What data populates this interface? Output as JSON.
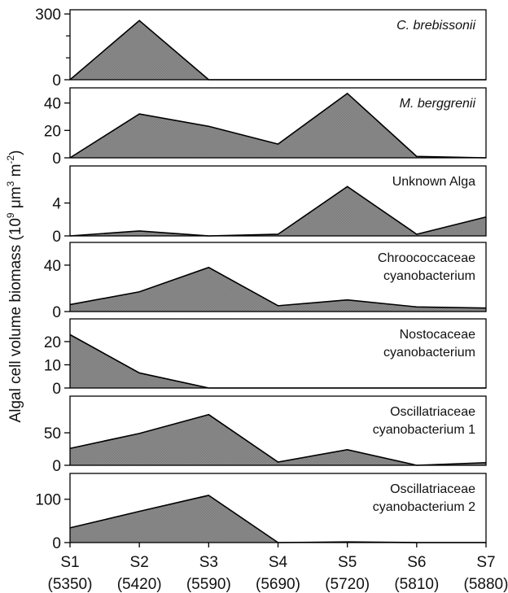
{
  "chart_data": {
    "type": "area",
    "ylabel": "Algal cell volume biomass (10",
    "ylabel_sup1": "9",
    "ylabel_mid": " μm",
    "ylabel_sup2": "3",
    "ylabel_end": " m",
    "ylabel_sup3": "-2",
    "ylabel_close": ")",
    "categories": [
      "S1",
      "S2",
      "S3",
      "S4",
      "S5",
      "S6",
      "S7"
    ],
    "category_sublabels": [
      "(5350)",
      "(5420)",
      "(5590)",
      "(5690)",
      "(5720)",
      "(5810)",
      "(5880)"
    ],
    "fill_color": "#8a8a8a",
    "line_color": "#000000",
    "panels": [
      {
        "title_lines": [
          "C. brebissonii"
        ],
        "italic": true,
        "ylim": [
          0,
          300
        ],
        "yticks": [
          0,
          300
        ],
        "minor_yticks": [
          100,
          200
        ],
        "values": [
          0,
          270,
          0,
          0,
          0,
          0,
          0
        ]
      },
      {
        "title_lines": [
          "M. berggrenii"
        ],
        "italic": true,
        "ylim": [
          0,
          48
        ],
        "yticks": [
          0,
          20,
          40
        ],
        "minor_yticks": [],
        "values": [
          0,
          32,
          23,
          10,
          47,
          1,
          0
        ]
      },
      {
        "title_lines": [
          "Unknown Alga"
        ],
        "italic": false,
        "ylim": [
          0,
          8
        ],
        "yticks": [
          0,
          4
        ],
        "minor_yticks": [],
        "values": [
          0,
          0.6,
          0,
          0.2,
          6.0,
          0.2,
          2.3
        ]
      },
      {
        "title_lines": [
          "Chroococcaceae",
          "cyanobacterium"
        ],
        "italic": false,
        "ylim": [
          0,
          56
        ],
        "yticks": [
          0,
          40
        ],
        "minor_yticks": [],
        "values": [
          6,
          17,
          38,
          5,
          10,
          4,
          3
        ]
      },
      {
        "title_lines": [
          "Nostocaceae",
          "cyanobacterium"
        ],
        "italic": false,
        "ylim": [
          0,
          28
        ],
        "yticks": [
          0,
          10,
          20
        ],
        "minor_yticks": [],
        "values": [
          23,
          6.5,
          0,
          0,
          0,
          0,
          0
        ]
      },
      {
        "title_lines": [
          "Oscillatriaceae",
          "cyanobacterium 1"
        ],
        "italic": false,
        "ylim": [
          0,
          100
        ],
        "yticks": [
          0,
          50
        ],
        "minor_yticks": [],
        "values": [
          26,
          49,
          78,
          5,
          24,
          0,
          4
        ]
      },
      {
        "title_lines": [
          "Oscillatriaceae",
          "cyanobacterium 2"
        ],
        "italic": false,
        "ylim": [
          0,
          150
        ],
        "yticks": [
          0,
          100
        ],
        "minor_yticks": [],
        "values": [
          34,
          72,
          109,
          0,
          1.5,
          0,
          0
        ]
      }
    ]
  }
}
